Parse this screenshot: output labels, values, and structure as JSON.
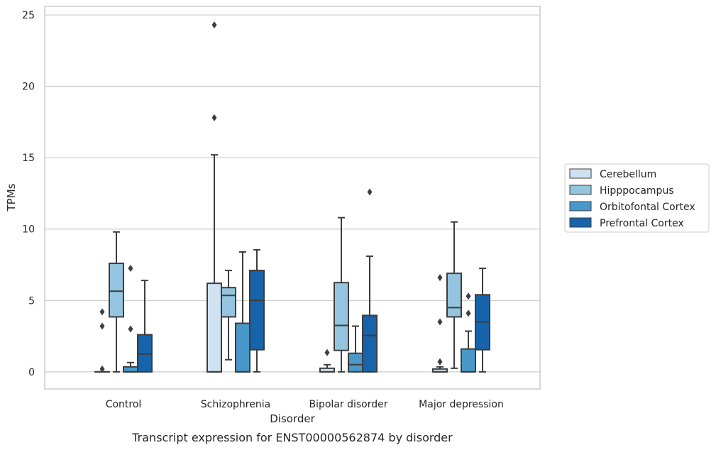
{
  "chart_data": {
    "type": "boxplot",
    "caption": "Transcript expression for ENST00000562874 by disorder",
    "xlabel": "Disorder",
    "ylabel": "TPMs",
    "ylim": [
      -1.2,
      25.6
    ],
    "yticks": [
      0,
      5,
      10,
      15,
      20,
      25
    ],
    "ytick_labels": [
      "0",
      "5",
      "10",
      "15",
      "20",
      "25"
    ],
    "grid": "horizontal",
    "legend_position": "right",
    "categories": [
      "Control",
      "Schizophrenia",
      "Bipolar disorder",
      "Major depression"
    ],
    "series": [
      {
        "name": "Cerebellum",
        "color": "#d0e1f2",
        "boxes": [
          {
            "q1": 0,
            "median": 0,
            "q3": 0,
            "whisker_low": 0,
            "whisker_high": 0,
            "outliers": [
              0.2,
              3.2,
              4.2
            ]
          },
          {
            "q1": 0,
            "median": 0,
            "q3": 6.2,
            "whisker_low": 0,
            "whisker_high": 15.2,
            "outliers": [
              17.8,
              24.3
            ]
          },
          {
            "q1": 0,
            "median": 0,
            "q3": 0.25,
            "whisker_low": 0,
            "whisker_high": 0.5,
            "outliers": [
              1.35
            ]
          },
          {
            "q1": 0,
            "median": 0,
            "q3": 0.2,
            "whisker_low": 0,
            "whisker_high": 0.35,
            "outliers": [
              0.7,
              3.5,
              6.6
            ]
          }
        ]
      },
      {
        "name": "Hipppocampus",
        "color": "#94c4df",
        "boxes": [
          {
            "q1": 3.85,
            "median": 5.65,
            "q3": 7.6,
            "whisker_low": 0,
            "whisker_high": 9.8,
            "outliers": []
          },
          {
            "q1": 3.85,
            "median": 5.35,
            "q3": 5.9,
            "whisker_low": 0.85,
            "whisker_high": 7.1,
            "outliers": []
          },
          {
            "q1": 1.5,
            "median": 3.25,
            "q3": 6.25,
            "whisker_low": 0,
            "whisker_high": 10.8,
            "outliers": []
          },
          {
            "q1": 3.85,
            "median": 4.5,
            "q3": 6.9,
            "whisker_low": 0.25,
            "whisker_high": 10.5,
            "outliers": []
          }
        ]
      },
      {
        "name": "Orbitofontal Cortex",
        "color": "#4a98c9",
        "boxes": [
          {
            "q1": 0,
            "median": 0,
            "q3": 0.35,
            "whisker_low": 0,
            "whisker_high": 0.65,
            "outliers": [
              3.0,
              7.25
            ]
          },
          {
            "q1": 0,
            "median": 0,
            "q3": 3.4,
            "whisker_low": 0,
            "whisker_high": 8.4,
            "outliers": []
          },
          {
            "q1": 0,
            "median": 0.5,
            "q3": 1.3,
            "whisker_low": 0,
            "whisker_high": 3.2,
            "outliers": []
          },
          {
            "q1": 0,
            "median": 0,
            "q3": 1.6,
            "whisker_low": 0,
            "whisker_high": 2.85,
            "outliers": [
              4.1,
              5.3
            ]
          }
        ]
      },
      {
        "name": "Prefrontal Cortex",
        "color": "#1764ab",
        "boxes": [
          {
            "q1": 0,
            "median": 1.25,
            "q3": 2.6,
            "whisker_low": 0,
            "whisker_high": 6.4,
            "outliers": []
          },
          {
            "q1": 1.55,
            "median": 5.0,
            "q3": 7.1,
            "whisker_low": 0,
            "whisker_high": 8.55,
            "outliers": []
          },
          {
            "q1": 0,
            "median": 2.55,
            "q3": 3.95,
            "whisker_low": 0,
            "whisker_high": 8.1,
            "outliers": [
              12.6
            ]
          },
          {
            "q1": 1.55,
            "median": 3.5,
            "q3": 5.4,
            "whisker_low": 0,
            "whisker_high": 7.25,
            "outliers": []
          }
        ]
      }
    ]
  }
}
